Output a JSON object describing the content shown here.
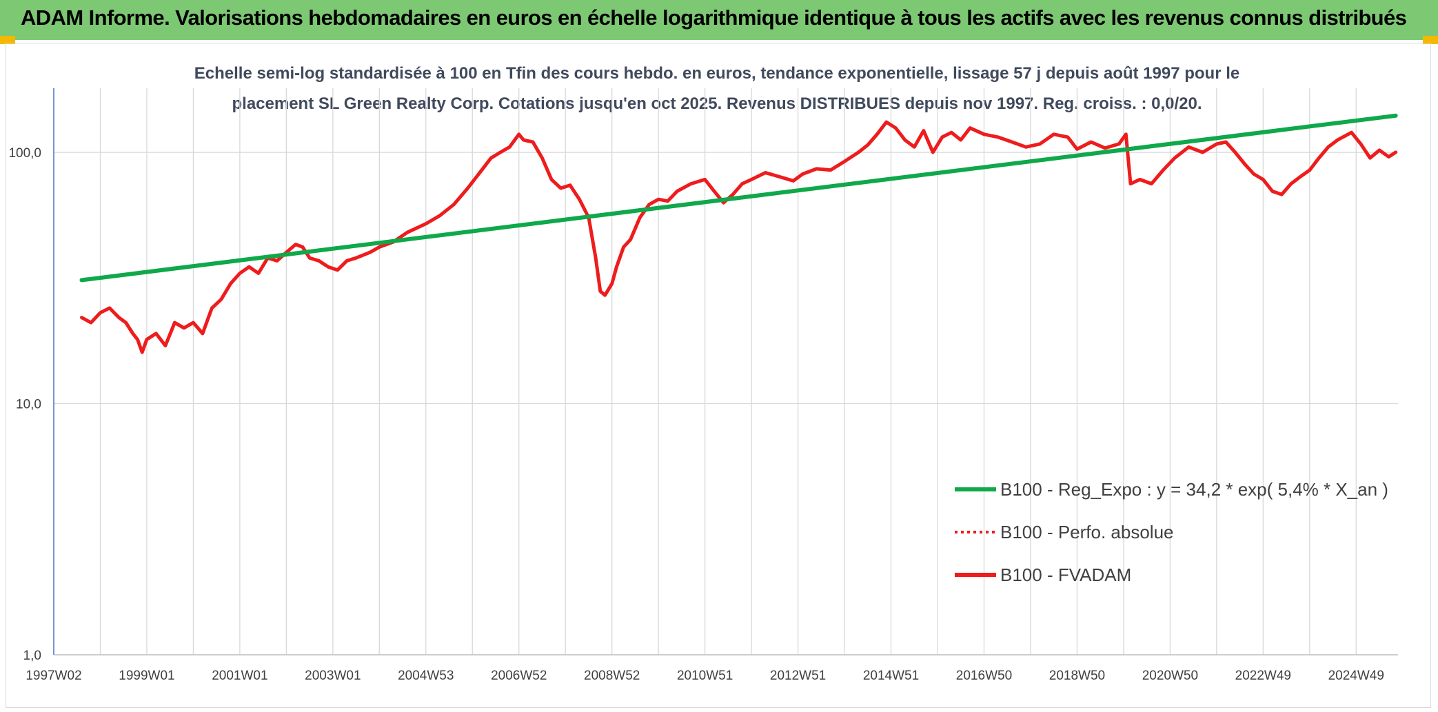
{
  "header": {
    "title": "ADAM Informe. Valorisations hebdomadaires en euros en échelle logarithmique identique à tous les actifs avec les revenus connus distribués"
  },
  "colors": {
    "banner": "#7dc873",
    "corner": "#f5b800",
    "regression": "#0fa84a",
    "fvadam": "#ee1c1c",
    "grid": "#d9d9d9"
  },
  "chart_data": {
    "type": "line",
    "title_lines": [
      "Echelle semi-log standardisée à 100 en Tfin des cours hebdo. en euros, tendance exponentielle, lissage 57 j depuis août 1997 pour le",
      "placement SL Green Realty Corp. Cotations jusqu'en oct 2025. Revenus DISTRIBUES depuis nov 1997. Reg. croiss. : 0,0/20."
    ],
    "y_scale": "log",
    "ylim": [
      1,
      180
    ],
    "y_ticks": [
      {
        "value": 1,
        "label": "1,0"
      },
      {
        "value": 10,
        "label": "10,0"
      },
      {
        "value": 100,
        "label": "100,0"
      }
    ],
    "x_range": [
      1997.0,
      2025.9
    ],
    "x_ticks": [
      {
        "value": 1997.0,
        "label": "1997W02"
      },
      {
        "value": 1999.0,
        "label": "1999W01"
      },
      {
        "value": 2001.0,
        "label": "2001W01"
      },
      {
        "value": 2003.0,
        "label": "2003W01"
      },
      {
        "value": 2005.0,
        "label": "2004W53"
      },
      {
        "value": 2007.0,
        "label": "2006W52"
      },
      {
        "value": 2009.0,
        "label": "2008W52"
      },
      {
        "value": 2011.0,
        "label": "2010W51"
      },
      {
        "value": 2013.0,
        "label": "2012W51"
      },
      {
        "value": 2015.0,
        "label": "2014W51"
      },
      {
        "value": 2017.0,
        "label": "2016W50"
      },
      {
        "value": 2019.0,
        "label": "2018W50"
      },
      {
        "value": 2021.0,
        "label": "2020W50"
      },
      {
        "value": 2023.0,
        "label": "2022W49"
      },
      {
        "value": 2025.0,
        "label": "2024W49"
      }
    ],
    "legend_position": "bottom-right",
    "series": [
      {
        "name": "B100 - Reg_Expo : y = 34,2 * exp( 5,4% *  X_an )",
        "style": "solid-green",
        "x": [
          1997.6,
          2025.85
        ],
        "y": [
          31,
          140
        ]
      },
      {
        "name": "B100 - Perfo. absolue",
        "style": "dotted-red",
        "x": [],
        "y": []
      },
      {
        "name": "B100 - FVADAM",
        "style": "solid-red",
        "x": [
          1997.6,
          1997.8,
          1998.0,
          1998.2,
          1998.4,
          1998.55,
          1998.7,
          1998.8,
          1998.9,
          1999.0,
          1999.2,
          1999.4,
          1999.6,
          1999.8,
          2000.0,
          2000.2,
          2000.4,
          2000.6,
          2000.8,
          2001.0,
          2001.2,
          2001.4,
          2001.6,
          2001.8,
          2002.0,
          2002.2,
          2002.35,
          2002.5,
          2002.7,
          2002.9,
          2003.1,
          2003.3,
          2003.5,
          2003.8,
          2004.0,
          2004.3,
          2004.6,
          2005.0,
          2005.3,
          2005.6,
          2005.9,
          2006.2,
          2006.4,
          2006.6,
          2006.8,
          2007.0,
          2007.1,
          2007.3,
          2007.5,
          2007.7,
          2007.9,
          2008.1,
          2008.3,
          2008.5,
          2008.65,
          2008.75,
          2008.85,
          2009.0,
          2009.1,
          2009.25,
          2009.4,
          2009.6,
          2009.8,
          2010.0,
          2010.2,
          2010.4,
          2010.7,
          2011.0,
          2011.2,
          2011.4,
          2011.6,
          2011.8,
          2012.0,
          2012.3,
          2012.6,
          2012.9,
          2013.1,
          2013.4,
          2013.7,
          2014.0,
          2014.3,
          2014.5,
          2014.7,
          2014.9,
          2015.1,
          2015.3,
          2015.5,
          2015.7,
          2015.9,
          2016.1,
          2016.3,
          2016.5,
          2016.7,
          2017.0,
          2017.3,
          2017.6,
          2017.9,
          2018.2,
          2018.5,
          2018.8,
          2019.0,
          2019.3,
          2019.6,
          2019.9,
          2020.05,
          2020.15,
          2020.35,
          2020.6,
          2020.85,
          2021.1,
          2021.4,
          2021.7,
          2022.0,
          2022.2,
          2022.4,
          2022.6,
          2022.8,
          2023.0,
          2023.2,
          2023.4,
          2023.6,
          2023.8,
          2024.0,
          2024.2,
          2024.4,
          2024.6,
          2024.9,
          2025.1,
          2025.3,
          2025.5,
          2025.7,
          2025.85
        ],
        "y": [
          22,
          21,
          23,
          24,
          22,
          21,
          19,
          18,
          16,
          18,
          19,
          17,
          21,
          20,
          21,
          19,
          24,
          26,
          30,
          33,
          35,
          33,
          38,
          37,
          40,
          43,
          42,
          38,
          37,
          35,
          34,
          37,
          38,
          40,
          42,
          44,
          48,
          52,
          56,
          62,
          72,
          85,
          95,
          100,
          105,
          118,
          112,
          110,
          95,
          78,
          72,
          74,
          65,
          55,
          38,
          28,
          27,
          30,
          35,
          42,
          45,
          55,
          62,
          65,
          64,
          70,
          75,
          78,
          70,
          63,
          68,
          75,
          78,
          83,
          80,
          77,
          82,
          86,
          85,
          92,
          100,
          107,
          118,
          132,
          125,
          112,
          105,
          122,
          100,
          115,
          120,
          112,
          125,
          118,
          115,
          110,
          105,
          108,
          118,
          115,
          103,
          110,
          104,
          108,
          118,
          75,
          78,
          75,
          85,
          95,
          105,
          100,
          108,
          110,
          100,
          90,
          82,
          78,
          70,
          68,
          75,
          80,
          85,
          95,
          105,
          112,
          120,
          108,
          95,
          102,
          96,
          100
        ]
      }
    ]
  }
}
